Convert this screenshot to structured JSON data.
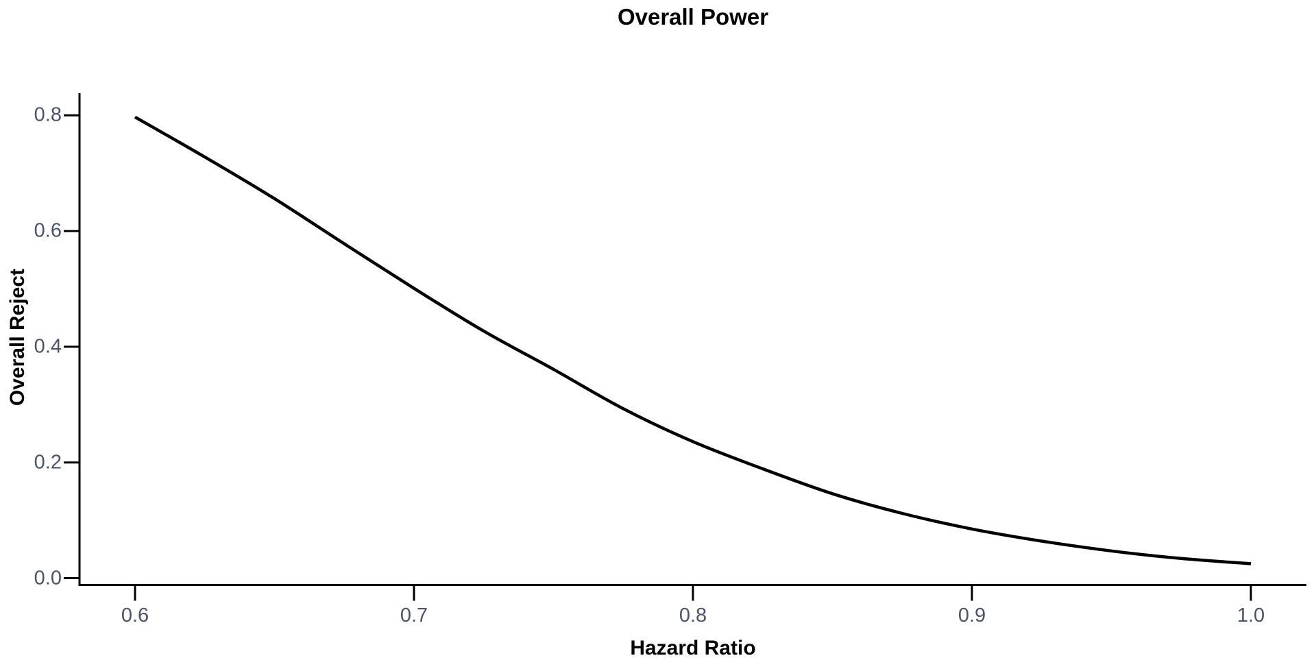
{
  "title": "Overall Power",
  "x_axis": {
    "label": "Hazard Ratio",
    "tick_labels": [
      "0.6",
      "0.7",
      "0.8",
      "0.9",
      "1.0"
    ],
    "tick_values": [
      0.6,
      0.7,
      0.8,
      0.9,
      1.0
    ]
  },
  "y_axis": {
    "label": "Overall Reject",
    "tick_labels": [
      "0.0",
      "0.2",
      "0.4",
      "0.6",
      "0.8"
    ],
    "tick_values": [
      0.0,
      0.2,
      0.4,
      0.6,
      0.8
    ]
  },
  "colors": {
    "curve": "#000000",
    "axis": "#000000",
    "tick_label": "#49536b",
    "label": "#000000",
    "background": "#ffffff"
  },
  "chart_data": {
    "type": "line",
    "title": "Overall Power",
    "xlabel": "Hazard Ratio",
    "ylabel": "Overall Reject",
    "xlim": [
      0.6,
      1.0
    ],
    "ylim": [
      0.0,
      0.8
    ],
    "grid": false,
    "legend": "none",
    "series": [
      {
        "name": "overall-power-curve",
        "x": [
          0.6,
          0.625,
          0.65,
          0.675,
          0.7,
          0.725,
          0.75,
          0.775,
          0.8,
          0.825,
          0.85,
          0.875,
          0.9,
          0.925,
          0.95,
          0.975,
          1.0
        ],
        "y": [
          0.797,
          0.728,
          0.656,
          0.578,
          0.501,
          0.427,
          0.361,
          0.293,
          0.236,
          0.189,
          0.146,
          0.112,
          0.085,
          0.064,
          0.047,
          0.034,
          0.025
        ]
      }
    ]
  }
}
